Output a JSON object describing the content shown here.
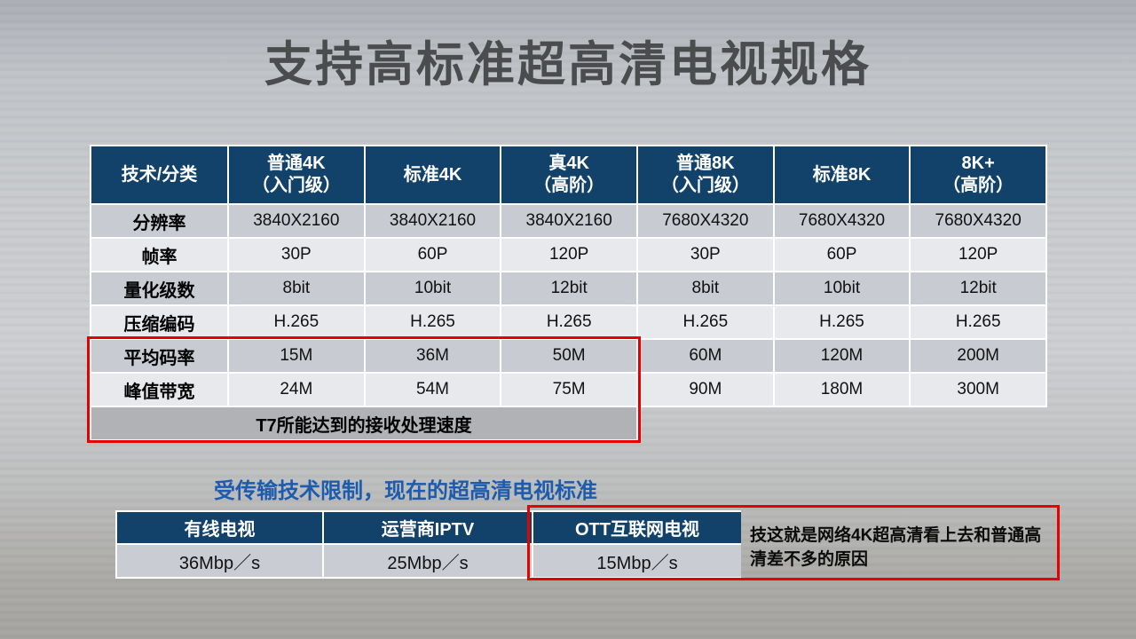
{
  "slide": {
    "title": "支持高标准超高清电视规格",
    "subtitle": "受传输技术限制，现在的超高清电视标准",
    "annotation": "技这就是网络4K超高清看上去和普通高清差不多的原因"
  },
  "spec_table": {
    "corner_header": "技术/分类",
    "columns": [
      "普通4K\n（入门级）",
      "标准4K",
      "真4K\n（高阶）",
      "普通8K\n（入门级）",
      "标准8K",
      "8K+\n（高阶）"
    ],
    "rows": [
      {
        "label": "分辨率",
        "values": [
          "3840X2160",
          "3840X2160",
          "3840X2160",
          "7680X4320",
          "7680X4320",
          "7680X4320"
        ]
      },
      {
        "label": "帧率",
        "values": [
          "30P",
          "60P",
          "120P",
          "30P",
          "60P",
          "120P"
        ]
      },
      {
        "label": "量化级数",
        "values": [
          "8bit",
          "10bit",
          "12bit",
          "8bit",
          "10bit",
          "12bit"
        ]
      },
      {
        "label": "压缩编码",
        "values": [
          "H.265",
          "H.265",
          "H.265",
          "H.265",
          "H.265",
          "H.265"
        ]
      },
      {
        "label": "平均码率",
        "values": [
          "15M",
          "36M",
          "50M",
          "60M",
          "120M",
          "200M"
        ]
      },
      {
        "label": "峰值带宽",
        "values": [
          "24M",
          "54M",
          "75M",
          "90M",
          "180M",
          "300M"
        ]
      }
    ],
    "footer_note": "T7所能达到的接收处理速度"
  },
  "bandwidth_table": {
    "columns": [
      "有线电视",
      "运营商IPTV",
      "OTT互联网电视"
    ],
    "values": [
      "36Mbp／s",
      "25Mbp／s",
      "15Mbp／s"
    ]
  },
  "colors": {
    "header_navy": "#12426a",
    "highlight_red": "#e60000",
    "subtitle_blue": "#1c5bad",
    "row_dark": "#c8cbd2",
    "row_light": "#e8e9ed",
    "footer_gray": "#b0b2b6",
    "title_gray": "#4b4c4e"
  }
}
